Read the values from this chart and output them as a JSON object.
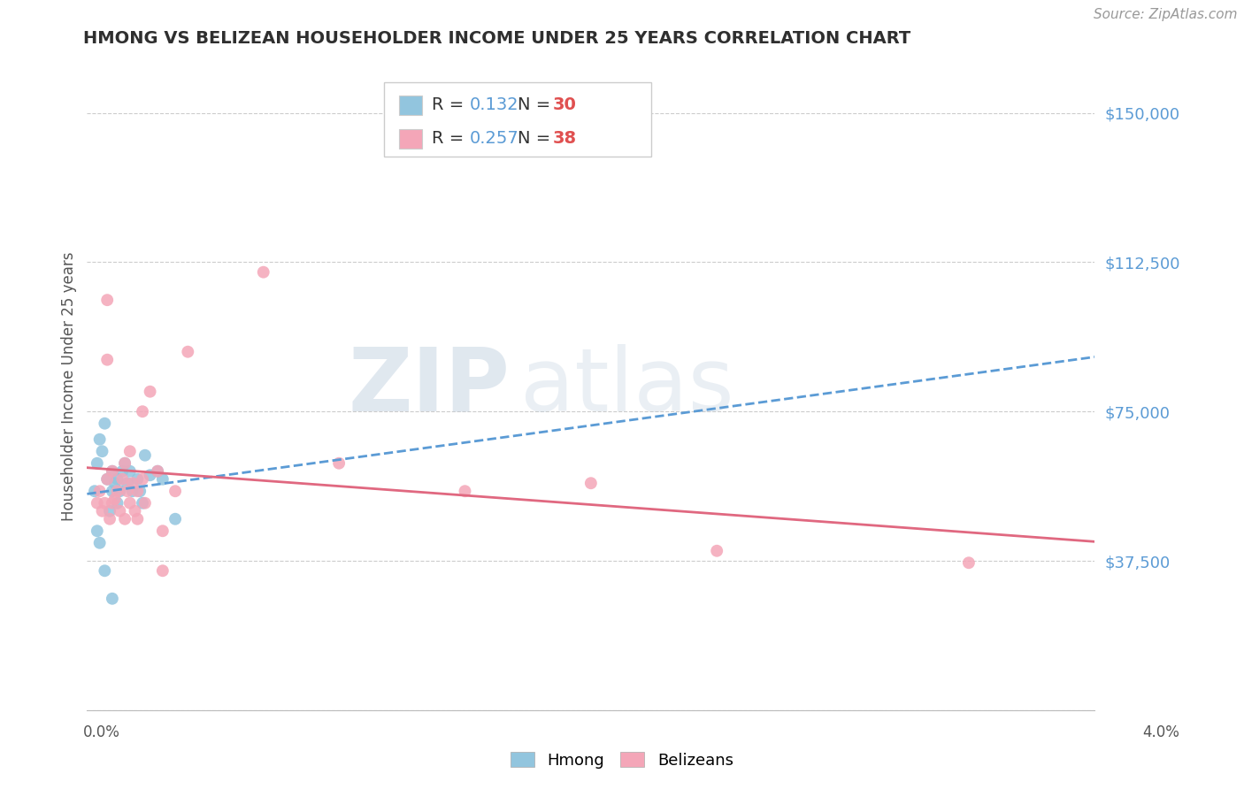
{
  "title": "HMONG VS BELIZEAN HOUSEHOLDER INCOME UNDER 25 YEARS CORRELATION CHART",
  "source": "Source: ZipAtlas.com",
  "ylabel": "Householder Income Under 25 years",
  "xlim": [
    0.0,
    4.0
  ],
  "ylim": [
    0,
    162500
  ],
  "yticks": [
    0,
    37500,
    75000,
    112500,
    150000
  ],
  "ytick_labels": [
    "",
    "$37,500",
    "$75,000",
    "$112,500",
    "$150,000"
  ],
  "watermark_zip": "ZIP",
  "watermark_atlas": "atlas",
  "hmong_R": "0.132",
  "hmong_N": "30",
  "belizean_R": "0.257",
  "belizean_N": "38",
  "hmong_color": "#92C5DE",
  "belizean_color": "#F4A6B8",
  "hmong_line_color": "#5B9BD5",
  "belizean_line_color": "#E06880",
  "grid_color": "#CCCCCC",
  "ytick_color": "#5B9BD5",
  "hmong_scatter_x": [
    0.03,
    0.04,
    0.05,
    0.06,
    0.07,
    0.08,
    0.09,
    0.1,
    0.1,
    0.11,
    0.12,
    0.12,
    0.13,
    0.14,
    0.15,
    0.16,
    0.17,
    0.18,
    0.2,
    0.21,
    0.22,
    0.23,
    0.25,
    0.28,
    0.3,
    0.35,
    0.04,
    0.05,
    0.07,
    0.1
  ],
  "hmong_scatter_y": [
    55000,
    62000,
    68000,
    65000,
    72000,
    58000,
    50000,
    55000,
    60000,
    57000,
    52000,
    58000,
    55000,
    60000,
    62000,
    57000,
    60000,
    55000,
    58000,
    55000,
    52000,
    64000,
    59000,
    60000,
    58000,
    48000,
    45000,
    42000,
    35000,
    28000
  ],
  "belizean_scatter_x": [
    0.04,
    0.05,
    0.06,
    0.07,
    0.08,
    0.08,
    0.09,
    0.1,
    0.1,
    0.11,
    0.12,
    0.13,
    0.14,
    0.15,
    0.15,
    0.16,
    0.17,
    0.17,
    0.18,
    0.19,
    0.2,
    0.2,
    0.22,
    0.23,
    0.25,
    0.28,
    0.3,
    0.3,
    0.35,
    0.4,
    0.08,
    0.22,
    0.7,
    1.0,
    1.5,
    2.0,
    2.5,
    3.5
  ],
  "belizean_scatter_y": [
    52000,
    55000,
    50000,
    52000,
    58000,
    103000,
    48000,
    52000,
    60000,
    53000,
    55000,
    50000,
    58000,
    62000,
    48000,
    55000,
    52000,
    65000,
    57000,
    50000,
    48000,
    55000,
    58000,
    52000,
    80000,
    60000,
    35000,
    45000,
    55000,
    90000,
    88000,
    75000,
    110000,
    62000,
    55000,
    57000,
    40000,
    37000
  ]
}
